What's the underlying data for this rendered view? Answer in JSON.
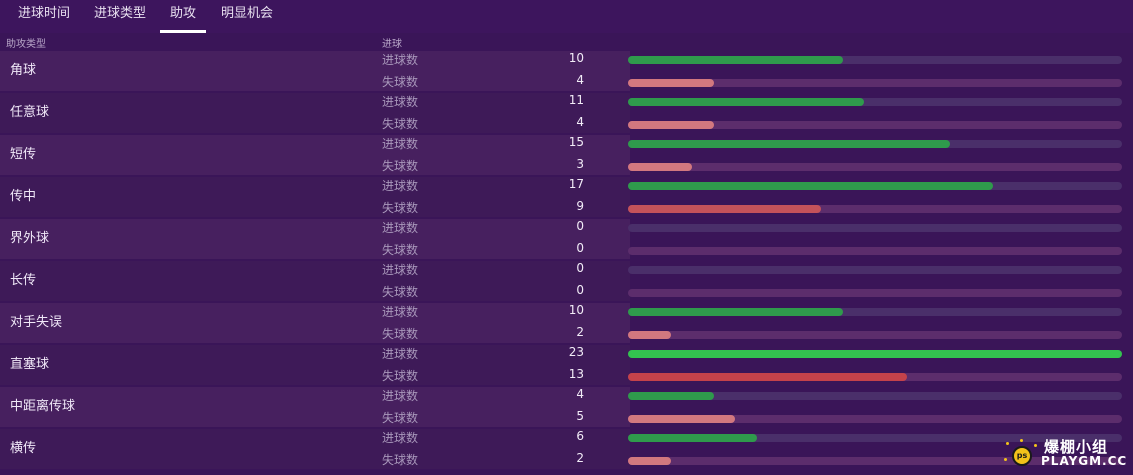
{
  "tabs": [
    {
      "label": "进球时间",
      "active": false
    },
    {
      "label": "进球类型",
      "active": false
    },
    {
      "label": "助攻",
      "active": true
    },
    {
      "label": "明显机会",
      "active": false
    }
  ],
  "headers": {
    "type": "助攻类型",
    "goals": "进球"
  },
  "labels": {
    "scored": "进球数",
    "conceded": "失球数"
  },
  "max_value": 23,
  "colors": {
    "scored_bar": "#2f9a4c",
    "scored_bar_max": "#33c24f",
    "conceded_bar": "#d2787f",
    "conceded_bar_high": "#c4525a",
    "conceded_bar_max": "#c5424a"
  },
  "rows": [
    {
      "type": "角球",
      "scored": 10,
      "conceded": 4
    },
    {
      "type": "任意球",
      "scored": 11,
      "conceded": 4
    },
    {
      "type": "短传",
      "scored": 15,
      "conceded": 3
    },
    {
      "type": "传中",
      "scored": 17,
      "conceded": 9
    },
    {
      "type": "界外球",
      "scored": 0,
      "conceded": 0
    },
    {
      "type": "长传",
      "scored": 0,
      "conceded": 0
    },
    {
      "type": "对手失误",
      "scored": 10,
      "conceded": 2
    },
    {
      "type": "直塞球",
      "scored": 23,
      "conceded": 13
    },
    {
      "type": "中距离传球",
      "scored": 4,
      "conceded": 5
    },
    {
      "type": "横传",
      "scored": 6,
      "conceded": 2
    }
  ],
  "watermark": {
    "line1": "爆棚小组",
    "line2": "PLAYGM.CC",
    "badge": "ps"
  }
}
